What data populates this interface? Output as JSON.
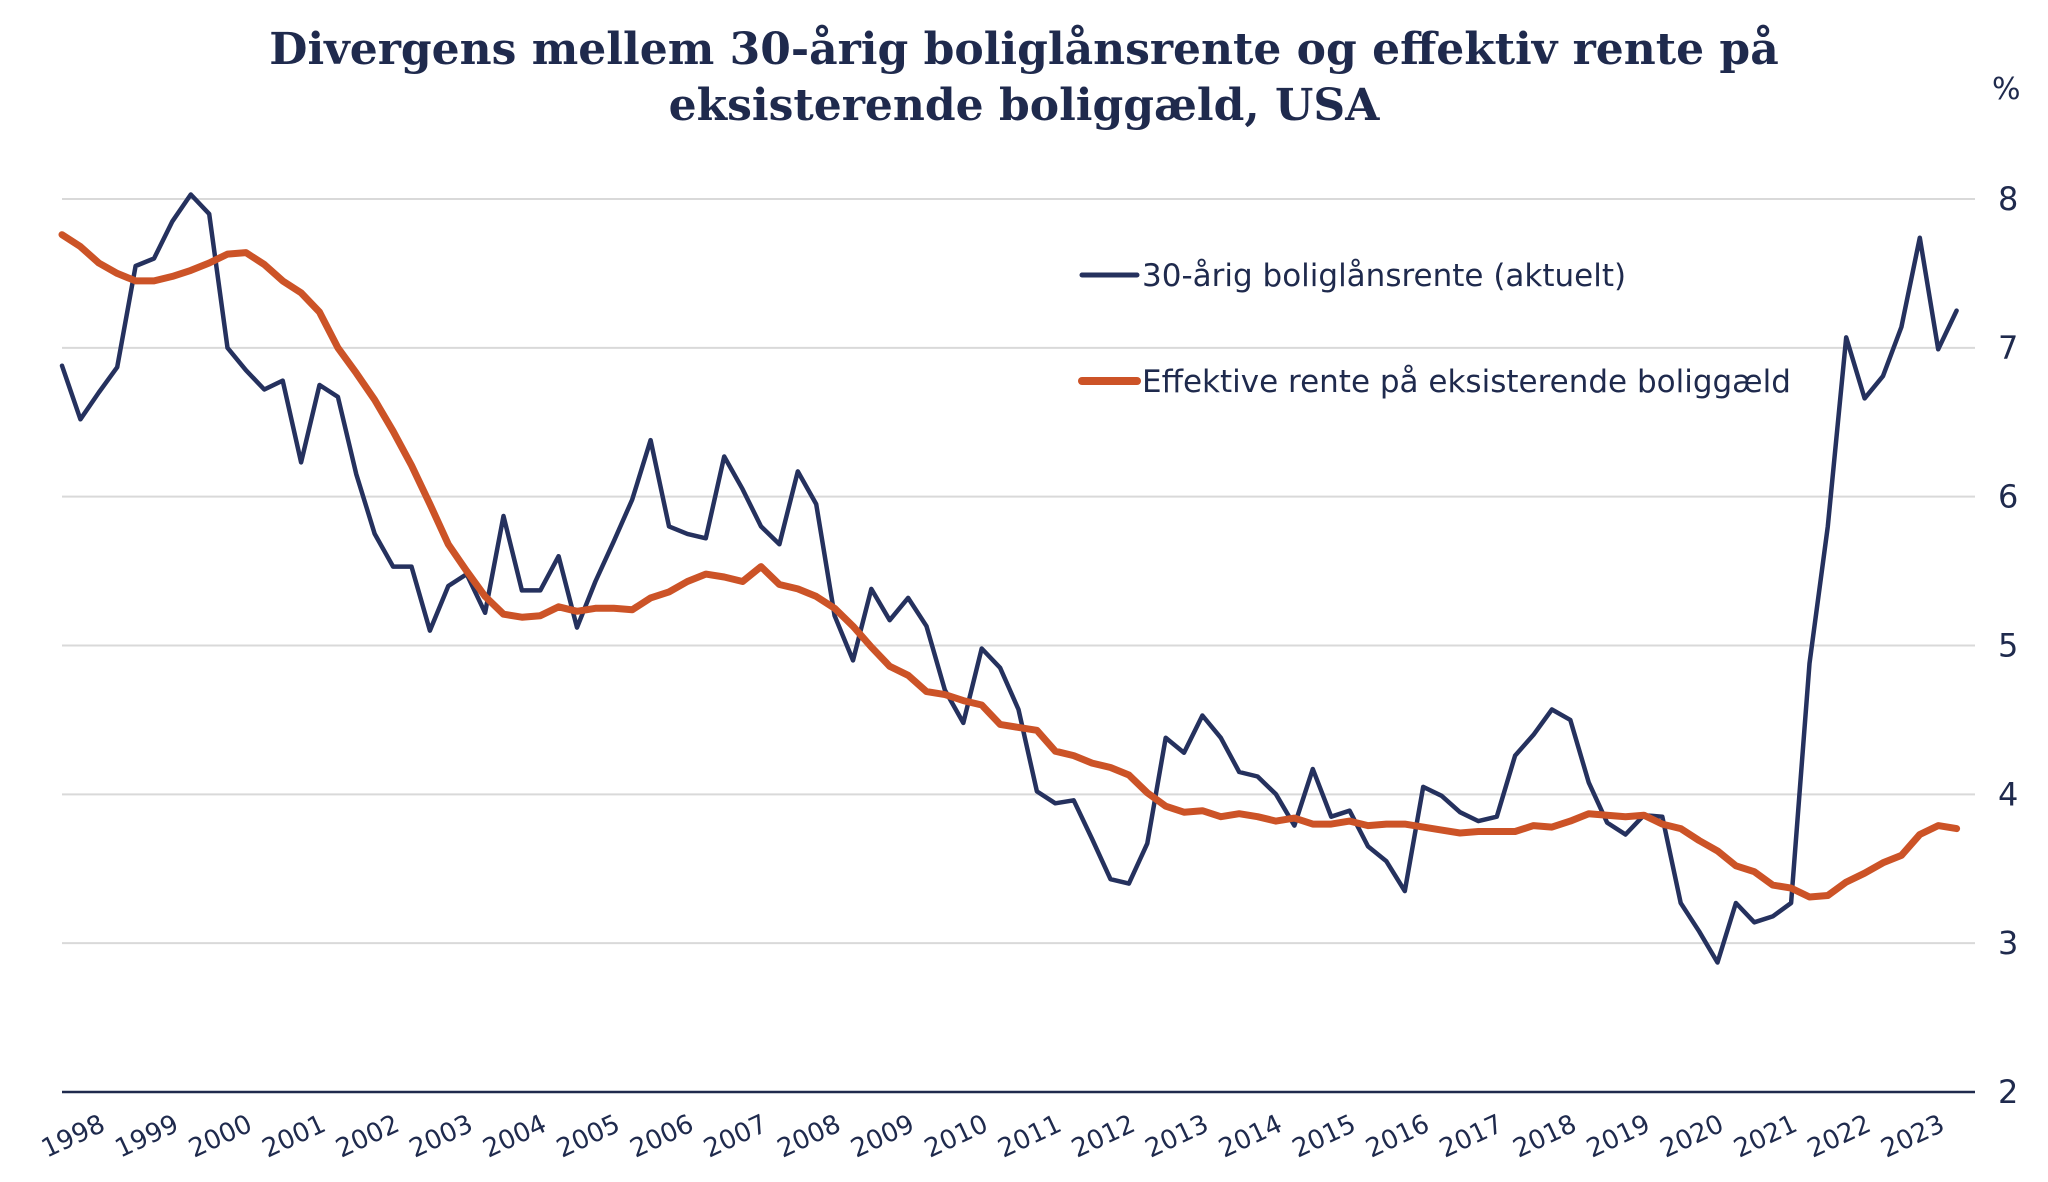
{
  "chart_data": {
    "type": "line",
    "title_lines": [
      "Divergens mellem 30-årig boliglånsrente og effektiv rente på",
      "eksisterende boliggæld, USA"
    ],
    "unit_label": "%",
    "ylim": [
      2,
      8
    ],
    "y_ticks": [
      "2",
      "3",
      "4",
      "5",
      "6",
      "7",
      "8"
    ],
    "x_range": [
      1998,
      2024
    ],
    "x_ticks": [
      "1998",
      "1999",
      "2000",
      "2001",
      "2002",
      "2003",
      "2004",
      "2005",
      "2006",
      "2007",
      "2008",
      "2009",
      "2010",
      "2011",
      "2012",
      "2013",
      "2014",
      "2015",
      "2016",
      "2017",
      "2018",
      "2019",
      "2020",
      "2021",
      "2022",
      "2023"
    ],
    "grid": true,
    "legend_position": "top-right",
    "colors": {
      "mortgage": "#25315e",
      "effective": "#cc5327",
      "grid": "#d9d9d9",
      "axis": "#1f2a4d"
    },
    "series": [
      {
        "name": "30-årig boliglånsrente (aktuelt)",
        "color": "#25315e",
        "points": [
          [
            1998.0,
            6.88
          ],
          [
            1998.25,
            6.52
          ],
          [
            1998.5,
            6.7
          ],
          [
            1998.75,
            6.87
          ],
          [
            1999.0,
            7.55
          ],
          [
            1999.25,
            7.6
          ],
          [
            1999.5,
            7.85
          ],
          [
            1999.75,
            8.03
          ],
          [
            2000.0,
            7.9
          ],
          [
            2000.25,
            7.0
          ],
          [
            2000.5,
            6.85
          ],
          [
            2000.75,
            6.72
          ],
          [
            2001.0,
            6.78
          ],
          [
            2001.25,
            6.23
          ],
          [
            2001.5,
            6.75
          ],
          [
            2001.75,
            6.67
          ],
          [
            2002.0,
            6.15
          ],
          [
            2002.25,
            5.75
          ],
          [
            2002.5,
            5.53
          ],
          [
            2002.75,
            5.53
          ],
          [
            2003.0,
            5.1
          ],
          [
            2003.25,
            5.4
          ],
          [
            2003.5,
            5.48
          ],
          [
            2003.75,
            5.22
          ],
          [
            2004.0,
            5.87
          ],
          [
            2004.25,
            5.37
          ],
          [
            2004.5,
            5.37
          ],
          [
            2004.75,
            5.6
          ],
          [
            2005.0,
            5.12
          ],
          [
            2005.25,
            5.43
          ],
          [
            2005.5,
            5.7
          ],
          [
            2005.75,
            5.98
          ],
          [
            2006.0,
            6.38
          ],
          [
            2006.25,
            5.8
          ],
          [
            2006.5,
            5.75
          ],
          [
            2006.75,
            5.72
          ],
          [
            2007.0,
            6.27
          ],
          [
            2007.25,
            6.05
          ],
          [
            2007.5,
            5.8
          ],
          [
            2007.75,
            5.68
          ],
          [
            2008.0,
            6.17
          ],
          [
            2008.25,
            5.95
          ],
          [
            2008.5,
            5.2
          ],
          [
            2008.75,
            4.9
          ],
          [
            2009.0,
            5.38
          ],
          [
            2009.25,
            5.17
          ],
          [
            2009.5,
            5.32
          ],
          [
            2009.75,
            5.13
          ],
          [
            2010.0,
            4.7
          ],
          [
            2010.25,
            4.48
          ],
          [
            2010.5,
            4.98
          ],
          [
            2010.75,
            4.85
          ],
          [
            2011.0,
            4.57
          ],
          [
            2011.25,
            4.02
          ],
          [
            2011.5,
            3.94
          ],
          [
            2011.75,
            3.96
          ],
          [
            2012.0,
            3.7
          ],
          [
            2012.25,
            3.43
          ],
          [
            2012.5,
            3.4
          ],
          [
            2012.75,
            3.67
          ],
          [
            2013.0,
            4.38
          ],
          [
            2013.25,
            4.28
          ],
          [
            2013.5,
            4.53
          ],
          [
            2013.75,
            4.38
          ],
          [
            2014.0,
            4.15
          ],
          [
            2014.25,
            4.12
          ],
          [
            2014.5,
            4.0
          ],
          [
            2014.75,
            3.79
          ],
          [
            2015.0,
            4.17
          ],
          [
            2015.25,
            3.85
          ],
          [
            2015.5,
            3.89
          ],
          [
            2015.75,
            3.65
          ],
          [
            2016.0,
            3.55
          ],
          [
            2016.25,
            3.35
          ],
          [
            2016.5,
            4.05
          ],
          [
            2016.75,
            3.99
          ],
          [
            2017.0,
            3.88
          ],
          [
            2017.25,
            3.82
          ],
          [
            2017.5,
            3.85
          ],
          [
            2017.75,
            4.26
          ],
          [
            2018.0,
            4.4
          ],
          [
            2018.25,
            4.57
          ],
          [
            2018.5,
            4.5
          ],
          [
            2018.75,
            4.08
          ],
          [
            2019.0,
            3.81
          ],
          [
            2019.25,
            3.73
          ],
          [
            2019.5,
            3.86
          ],
          [
            2019.75,
            3.85
          ],
          [
            2020.0,
            3.27
          ],
          [
            2020.25,
            3.08
          ],
          [
            2020.5,
            2.87
          ],
          [
            2020.75,
            3.27
          ],
          [
            2021.0,
            3.14
          ],
          [
            2021.25,
            3.18
          ],
          [
            2021.5,
            3.27
          ],
          [
            2021.75,
            4.88
          ],
          [
            2022.0,
            5.8
          ],
          [
            2022.25,
            7.07
          ],
          [
            2022.5,
            6.66
          ],
          [
            2022.75,
            6.81
          ],
          [
            2023.0,
            7.14
          ],
          [
            2023.25,
            7.74
          ],
          [
            2023.5,
            6.99
          ],
          [
            2023.75,
            7.25
          ]
        ]
      },
      {
        "name": "Effektive rente på eksisterende boliggæld",
        "color": "#cc5327",
        "points": [
          [
            1998.0,
            7.76
          ],
          [
            1998.25,
            7.68
          ],
          [
            1998.5,
            7.57
          ],
          [
            1998.75,
            7.5
          ],
          [
            1999.0,
            7.45
          ],
          [
            1999.25,
            7.45
          ],
          [
            1999.5,
            7.48
          ],
          [
            1999.75,
            7.52
          ],
          [
            2000.0,
            7.57
          ],
          [
            2000.25,
            7.63
          ],
          [
            2000.5,
            7.64
          ],
          [
            2000.75,
            7.56
          ],
          [
            2001.0,
            7.45
          ],
          [
            2001.25,
            7.37
          ],
          [
            2001.5,
            7.24
          ],
          [
            2001.75,
            7.0
          ],
          [
            2002.0,
            6.83
          ],
          [
            2002.25,
            6.65
          ],
          [
            2002.5,
            6.44
          ],
          [
            2002.75,
            6.21
          ],
          [
            2003.0,
            5.95
          ],
          [
            2003.25,
            5.68
          ],
          [
            2003.5,
            5.5
          ],
          [
            2003.75,
            5.33
          ],
          [
            2004.0,
            5.21
          ],
          [
            2004.25,
            5.19
          ],
          [
            2004.5,
            5.2
          ],
          [
            2004.75,
            5.26
          ],
          [
            2005.0,
            5.23
          ],
          [
            2005.25,
            5.25
          ],
          [
            2005.5,
            5.25
          ],
          [
            2005.75,
            5.24
          ],
          [
            2006.0,
            5.32
          ],
          [
            2006.25,
            5.36
          ],
          [
            2006.5,
            5.43
          ],
          [
            2006.75,
            5.48
          ],
          [
            2007.0,
            5.46
          ],
          [
            2007.25,
            5.43
          ],
          [
            2007.5,
            5.53
          ],
          [
            2007.75,
            5.41
          ],
          [
            2008.0,
            5.38
          ],
          [
            2008.25,
            5.33
          ],
          [
            2008.5,
            5.25
          ],
          [
            2008.75,
            5.13
          ],
          [
            2009.0,
            4.99
          ],
          [
            2009.25,
            4.86
          ],
          [
            2009.5,
            4.8
          ],
          [
            2009.75,
            4.69
          ],
          [
            2010.0,
            4.67
          ],
          [
            2010.25,
            4.63
          ],
          [
            2010.5,
            4.6
          ],
          [
            2010.75,
            4.47
          ],
          [
            2011.0,
            4.45
          ],
          [
            2011.25,
            4.43
          ],
          [
            2011.5,
            4.29
          ],
          [
            2011.75,
            4.26
          ],
          [
            2012.0,
            4.21
          ],
          [
            2012.25,
            4.18
          ],
          [
            2012.5,
            4.13
          ],
          [
            2012.75,
            4.01
          ],
          [
            2013.0,
            3.92
          ],
          [
            2013.25,
            3.88
          ],
          [
            2013.5,
            3.89
          ],
          [
            2013.75,
            3.85
          ],
          [
            2014.0,
            3.87
          ],
          [
            2014.25,
            3.85
          ],
          [
            2014.5,
            3.82
          ],
          [
            2014.75,
            3.84
          ],
          [
            2015.0,
            3.8
          ],
          [
            2015.25,
            3.8
          ],
          [
            2015.5,
            3.82
          ],
          [
            2015.75,
            3.79
          ],
          [
            2016.0,
            3.8
          ],
          [
            2016.25,
            3.8
          ],
          [
            2016.5,
            3.78
          ],
          [
            2016.75,
            3.76
          ],
          [
            2017.0,
            3.74
          ],
          [
            2017.25,
            3.75
          ],
          [
            2017.5,
            3.75
          ],
          [
            2017.75,
            3.75
          ],
          [
            2018.0,
            3.79
          ],
          [
            2018.25,
            3.78
          ],
          [
            2018.5,
            3.82
          ],
          [
            2018.75,
            3.87
          ],
          [
            2019.0,
            3.86
          ],
          [
            2019.25,
            3.85
          ],
          [
            2019.5,
            3.86
          ],
          [
            2019.75,
            3.8
          ],
          [
            2020.0,
            3.77
          ],
          [
            2020.25,
            3.69
          ],
          [
            2020.5,
            3.62
          ],
          [
            2020.75,
            3.52
          ],
          [
            2021.0,
            3.48
          ],
          [
            2021.25,
            3.39
          ],
          [
            2021.5,
            3.37
          ],
          [
            2021.75,
            3.31
          ],
          [
            2022.0,
            3.32
          ],
          [
            2022.25,
            3.41
          ],
          [
            2022.5,
            3.47
          ],
          [
            2022.75,
            3.54
          ],
          [
            2023.0,
            3.59
          ],
          [
            2023.25,
            3.73
          ],
          [
            2023.5,
            3.79
          ],
          [
            2023.75,
            3.77
          ]
        ]
      }
    ]
  }
}
